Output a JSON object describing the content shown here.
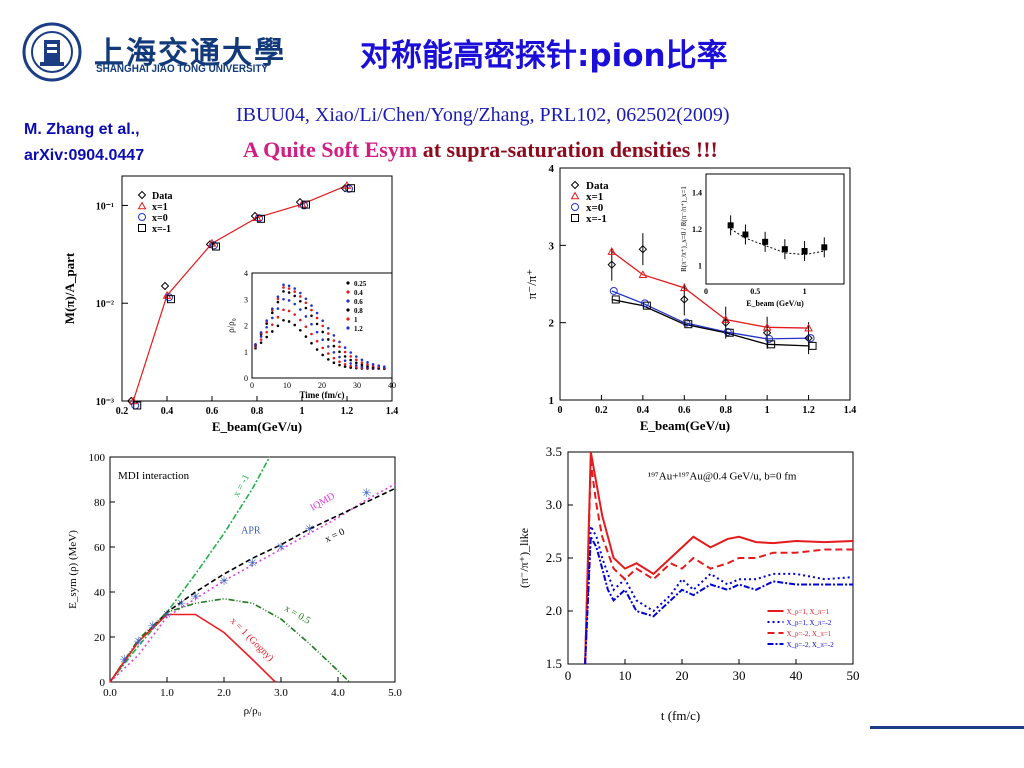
{
  "header": {
    "university_cn": "上海交通大學",
    "university_en": "SHANGHAI  JIAO TONG  UNIVERSITY",
    "slide_title": "对称能高密探针:pion比率"
  },
  "citation": {
    "author_line1": "M. Zhang et al.,",
    "author_line2": "arXiv:0904.0447",
    "reference": "IBUU04, Xiao/Li/Chen/Yong/Zhang, PRL102, 062502(2009)",
    "claim_highlight": "A Quite Soft Esym",
    "claim_rest": " at supra-saturation densities !!!"
  },
  "chart_data": [
    {
      "type": "scatter",
      "panel": "pion multiplicity",
      "xlabel": "E_beam(GeV/u)",
      "ylabel": "M(π)/A_part",
      "xlim": [
        0.2,
        1.4
      ],
      "ylog": true,
      "ylim": [
        0.001,
        0.2
      ],
      "xticks": [
        "0.2",
        "0.4",
        "0.6",
        "0.8",
        "1",
        "1.2",
        "1.4"
      ],
      "yticks": [
        "10⁻¹",
        "10⁻²",
        "10⁻³"
      ],
      "legend": [
        "Data",
        "x=1",
        "x=0",
        "x=-1"
      ],
      "x": [
        0.25,
        0.4,
        0.6,
        0.8,
        1.0,
        1.2
      ],
      "series": [
        {
          "name": "Data",
          "values": [
            0.001,
            0.015,
            0.04,
            0.078,
            0.108,
            0.15
          ]
        },
        {
          "name": "x=1",
          "values": [
            0.001,
            0.012,
            0.041,
            0.075,
            0.103,
            0.16
          ]
        },
        {
          "name": "x=0",
          "values": [
            0.0009,
            0.0115,
            0.039,
            0.074,
            0.1,
            0.148
          ]
        },
        {
          "name": "x=-1",
          "values": [
            0.0009,
            0.011,
            0.038,
            0.073,
            0.102,
            0.15
          ]
        }
      ],
      "inset": {
        "xlabel": "Time (fm/c)",
        "ylabel": "ρ/ρ₀",
        "xlim": [
          0,
          40
        ],
        "ylim": [
          0,
          4
        ],
        "xticks": [
          "0",
          "10",
          "20",
          "30",
          "40"
        ],
        "yticks": [
          "0",
          "1",
          "2",
          "3",
          "4"
        ],
        "legend": [
          "0.25",
          "0.4",
          "0.6",
          "0.8",
          "1",
          "1.2"
        ],
        "peaks": [
          2.2,
          2.6,
          3.0,
          3.3,
          3.45,
          3.55
        ]
      }
    },
    {
      "type": "scatter",
      "panel": "pion ratio",
      "xlabel": "E_beam(GeV/u)",
      "ylabel": "π⁻/π⁺",
      "xlim": [
        0,
        1.4
      ],
      "ylim": [
        1,
        4
      ],
      "xticks": [
        "0",
        "0.2",
        "0.4",
        "0.6",
        "0.8",
        "1",
        "1.2",
        "1.4"
      ],
      "yticks": [
        "1",
        "2",
        "3",
        "4"
      ],
      "legend": [
        "Data",
        "x=1",
        "x=0",
        "x=-1"
      ],
      "x": [
        0.25,
        0.4,
        0.6,
        0.8,
        1.0,
        1.2
      ],
      "series": [
        {
          "name": "Data",
          "values": [
            2.75,
            2.95,
            2.3,
            2.0,
            1.87,
            1.8
          ]
        },
        {
          "name": "x=1",
          "values": [
            2.92,
            2.62,
            2.45,
            2.04,
            1.94,
            1.93
          ]
        },
        {
          "name": "x=0",
          "values": [
            2.41,
            2.25,
            2.0,
            1.88,
            1.79,
            1.8
          ]
        },
        {
          "name": "x=-1",
          "values": [
            2.3,
            2.22,
            1.98,
            1.87,
            1.72,
            1.7
          ]
        }
      ],
      "inset": {
        "xlabel": "E_beam (GeV/u)",
        "ylabel": "R(π⁻/π⁺)_x=0 / R(π⁻/π⁺)_x=1",
        "xlim": [
          0,
          1.4
        ],
        "ylim": [
          0.9,
          1.5
        ],
        "xticks": [
          "0",
          "0.5",
          "1"
        ],
        "yticks": [
          "1",
          "1.2",
          "1.4"
        ],
        "x": [
          0.25,
          0.4,
          0.6,
          0.8,
          1.0,
          1.2
        ],
        "values": [
          1.22,
          1.17,
          1.13,
          1.09,
          1.08,
          1.1
        ]
      }
    },
    {
      "type": "line",
      "panel": "symmetry energy",
      "xlabel": "ρ/ρ₀",
      "ylabel": "E_sym (ρ) (MeV)",
      "xlim": [
        0,
        5
      ],
      "ylim": [
        0,
        100
      ],
      "xticks": [
        "0.0",
        "1.0",
        "2.0",
        "3.0",
        "4.0",
        "5.0"
      ],
      "yticks": [
        "0",
        "20",
        "40",
        "60",
        "80",
        "100"
      ],
      "annotations": [
        "MDI interaction",
        "x = -1",
        "IQMD",
        "APR",
        "x = 0",
        "x = 0.5",
        "x = 1 (Gogny)"
      ],
      "series": [
        {
          "name": "x = -1",
          "color": "#22b14c",
          "x": [
            0,
            0.5,
            1,
            1.5,
            2,
            2.5,
            2.8
          ],
          "values": [
            0,
            16,
            31,
            48,
            66,
            86,
            100
          ]
        },
        {
          "name": "IQMD",
          "color": "#e23fe2",
          "x": [
            0,
            0.5,
            1,
            1.5,
            2,
            2.5,
            3,
            3.5,
            4,
            4.5,
            5
          ],
          "values": [
            0,
            12,
            29,
            37,
            45,
            52,
            59,
            66,
            73,
            81,
            88
          ]
        },
        {
          "name": "x = 0",
          "color": "#000000",
          "x": [
            0,
            0.5,
            1,
            1.5,
            2,
            2.5,
            3,
            3.5,
            4,
            4.5,
            5
          ],
          "values": [
            0,
            18,
            31,
            40,
            48,
            55,
            61,
            68,
            74,
            80,
            86
          ]
        },
        {
          "name": "x = 0.5",
          "color": "#1f7a1f",
          "x": [
            0,
            0.5,
            1,
            1.5,
            2,
            2.5,
            3,
            3.5,
            4,
            4.2
          ],
          "values": [
            0,
            19,
            31,
            35,
            37,
            35,
            28,
            17,
            5,
            0
          ]
        },
        {
          "name": "x = 1 (Gogny)",
          "color": "#ee1c24",
          "x": [
            0,
            0.5,
            1,
            1.5,
            2,
            2.5,
            2.9
          ],
          "values": [
            0,
            18,
            30,
            30,
            22,
            10,
            0
          ]
        },
        {
          "name": "APR",
          "color": "#3b5fc0",
          "x": [
            0.25,
            0.5,
            0.75,
            1,
            1.25,
            1.5,
            2,
            2.5,
            3,
            3.5,
            4.5
          ],
          "values": [
            10,
            18,
            25,
            30,
            35,
            38,
            45,
            53,
            60,
            68,
            84
          ]
        }
      ]
    },
    {
      "type": "line",
      "panel": "pion ratio evolution",
      "xlabel": "t (fm/c)",
      "ylabel": "(π⁻/π⁺)_like",
      "xlim": [
        0,
        50
      ],
      "ylim": [
        1.5,
        3.5
      ],
      "xticks": [
        "0",
        "10",
        "20",
        "30",
        "40",
        "50"
      ],
      "yticks": [
        "1.5",
        "2.0",
        "2.5",
        "3.0",
        "3.5"
      ],
      "annotation": "¹⁹⁷Au+¹⁹⁷Au@0.4 GeV/u, b=0 fm",
      "legend": [
        "X_p=1, X_π=1",
        "X_p=1, X_π=-2",
        "X_p=-2, X_π=1",
        "X_p=-2, X_π=-2"
      ],
      "x": [
        3,
        4,
        5,
        6,
        7,
        8,
        10,
        12,
        15,
        18,
        20,
        22,
        25,
        28,
        30,
        33,
        36,
        40,
        45,
        50
      ],
      "series": [
        {
          "name": "X_p=1, X_π=1",
          "color": "#e41a1c",
          "values": [
            1.5,
            3.5,
            3.2,
            2.9,
            2.7,
            2.5,
            2.4,
            2.45,
            2.35,
            2.5,
            2.6,
            2.7,
            2.6,
            2.68,
            2.7,
            2.65,
            2.64,
            2.66,
            2.65,
            2.66
          ]
        },
        {
          "name": "X_p=1, X_π=-2",
          "color": "#0000d8",
          "values": [
            1.5,
            2.8,
            2.7,
            2.5,
            2.35,
            2.2,
            2.3,
            2.1,
            2.0,
            2.15,
            2.3,
            2.2,
            2.35,
            2.25,
            2.3,
            2.3,
            2.35,
            2.35,
            2.3,
            2.32
          ]
        },
        {
          "name": "X_p=-2, X_π=1",
          "color": "#e41a1c",
          "values": [
            1.5,
            3.4,
            3.0,
            2.7,
            2.55,
            2.4,
            2.3,
            2.4,
            2.3,
            2.45,
            2.4,
            2.5,
            2.4,
            2.45,
            2.5,
            2.5,
            2.55,
            2.55,
            2.58,
            2.58
          ]
        },
        {
          "name": "X_p=-2, X_π=-2",
          "color": "#0000d8",
          "values": [
            1.5,
            2.7,
            2.6,
            2.4,
            2.2,
            2.1,
            2.2,
            2.0,
            1.95,
            2.1,
            2.2,
            2.15,
            2.25,
            2.2,
            2.25,
            2.2,
            2.28,
            2.25,
            2.25,
            2.25
          ]
        }
      ]
    }
  ]
}
